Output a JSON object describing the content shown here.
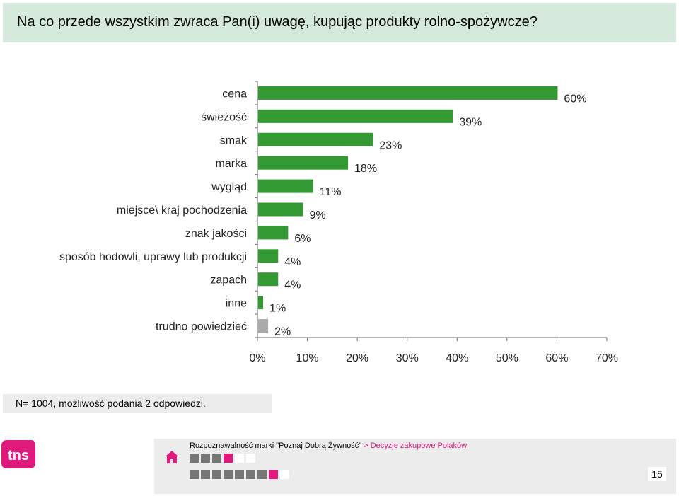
{
  "slide_title": "Na co przede wszystkim zwraca Pan(i) uwagę, kupując produkty rolno-spożywcze?",
  "note": "N= 1004, możliwość podania 2 odpowiedzi.",
  "footer": {
    "part1": "Rozpoznawalność marki \"Poznaj Dobrą Żywność\"",
    "part2": " > Decyzje zakupowe Polaków",
    "page_number": "15",
    "logo_text": "tns"
  },
  "colors": {
    "bar_main": "#339933",
    "bar_other": "#aaaaaa",
    "title_bg": "#d4e8dc",
    "accent": "#e0197d"
  },
  "chart_data": {
    "type": "bar",
    "orientation": "horizontal",
    "categories": [
      "cena",
      "świeżość",
      "smak",
      "marka",
      "wygląd",
      "miejsce\\ kraj pochodzenia",
      "znak jakości",
      "sposób hodowli, uprawy lub produkcji",
      "zapach",
      "inne",
      "trudno powiedzieć"
    ],
    "values": [
      60,
      39,
      23,
      18,
      11,
      9,
      6,
      4,
      4,
      1,
      2
    ],
    "value_labels": [
      "60%",
      "39%",
      "23%",
      "18%",
      "11%",
      "9%",
      "6%",
      "4%",
      "4%",
      "1%",
      "2%"
    ],
    "bar_colors": [
      "#339933",
      "#339933",
      "#339933",
      "#339933",
      "#339933",
      "#339933",
      "#339933",
      "#339933",
      "#339933",
      "#339933",
      "#aaaaaa"
    ],
    "xlim": [
      0,
      70
    ],
    "xticks": [
      "0%",
      "10%",
      "20%",
      "30%",
      "40%",
      "50%",
      "60%",
      "70%"
    ],
    "grid": false
  }
}
